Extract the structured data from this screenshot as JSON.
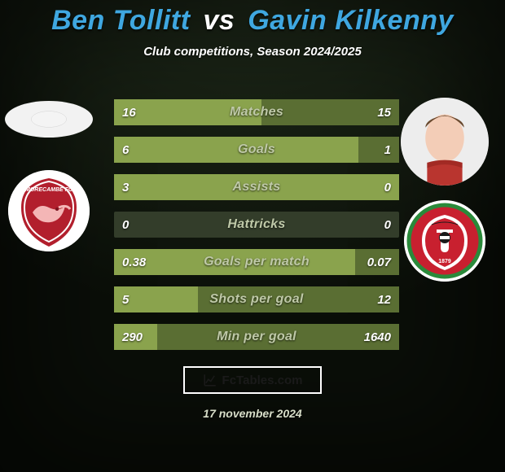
{
  "background": {
    "top_color": "#1f2a1a",
    "bottom_color": "#0a0e08",
    "vignette": "rgba(0,0,0,0.55)"
  },
  "title": {
    "player1": "Ben Tollitt",
    "vs": "vs",
    "player2": "Gavin Kilkenny",
    "color_p1": "#3fa7e0",
    "color_vs": "#ffffff",
    "color_p2": "#3fa7e0",
    "fontsize": 34
  },
  "subtitle": {
    "text": "Club competitions, Season 2024/2025",
    "color": "#ffffff",
    "fontsize": 15
  },
  "left_avatars": {
    "player": {
      "size": 108,
      "bg": "#f2f2f2",
      "type": "blank-oval"
    },
    "club": {
      "size": 100,
      "bg": "#ffffff",
      "type": "morecambe"
    }
  },
  "right_avatars": {
    "player": {
      "size": 108,
      "bg": "#eeeeee",
      "type": "face"
    },
    "club": {
      "size": 100,
      "bg": "#ffffff",
      "type": "swindon"
    }
  },
  "bars": {
    "track_color": "#333d2a",
    "fill_left_color": "#8aa34d",
    "fill_right_color": "#5a6e33",
    "label_color": "#bfc9a8",
    "value_color": "#ffffff",
    "label_fontsize": 16,
    "value_fontsize": 15,
    "height": 32,
    "items": [
      {
        "label": "Matches",
        "left": "16",
        "right": "15",
        "left_num": 16,
        "right_num": 15
      },
      {
        "label": "Goals",
        "left": "6",
        "right": "1",
        "left_num": 6,
        "right_num": 1
      },
      {
        "label": "Assists",
        "left": "3",
        "right": "0",
        "left_num": 3,
        "right_num": 0
      },
      {
        "label": "Hattricks",
        "left": "0",
        "right": "0",
        "left_num": 0,
        "right_num": 0
      },
      {
        "label": "Goals per match",
        "left": "0.38",
        "right": "0.07",
        "left_num": 0.38,
        "right_num": 0.07
      },
      {
        "label": "Shots per goal",
        "left": "5",
        "right": "12",
        "left_num": 5,
        "right_num": 12
      },
      {
        "label": "Min per goal",
        "left": "290",
        "right": "1640",
        "left_num": 290,
        "right_num": 1640
      }
    ]
  },
  "logo": {
    "text_prefix": "Fc",
    "text_suffix": "Tables.com",
    "border_color": "#ffffff",
    "text_color": "#1a1a1a",
    "fontsize": 15
  },
  "date": {
    "text": "17 november 2024",
    "color": "#d7ddc8",
    "fontsize": 14
  }
}
